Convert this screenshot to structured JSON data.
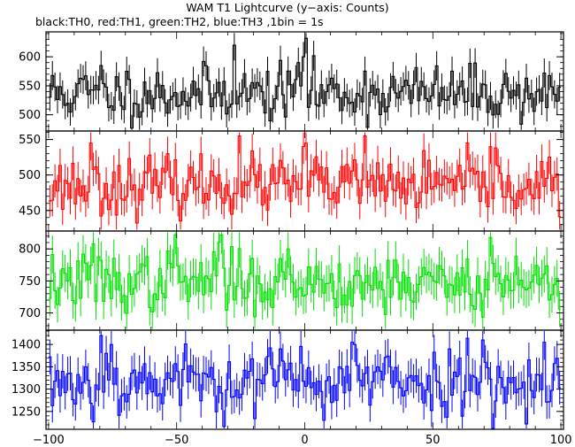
{
  "title": "WAM T1 Lightcurve (y−axis: Counts)",
  "subtitle": "black:TH0, red:TH1, green:TH2, blue:TH3 ,1bin = 1s",
  "chart_data": {
    "type": "line",
    "stacked_panels": true,
    "shared_x": {
      "range": [
        -101,
        101
      ],
      "ticks": [
        -100,
        -50,
        0,
        50,
        100
      ]
    },
    "panels": [
      {
        "name": "TH0",
        "color": "#000000",
        "ylim": [
          472,
          643
        ],
        "yticks": [
          500,
          550,
          600
        ],
        "mean": 537,
        "sigma": 28,
        "seed": 11,
        "peaks": [
          [
            -28,
            620
          ],
          [
            0,
            632
          ],
          [
            -1,
            600
          ],
          [
            -3,
            590
          ],
          [
            -80,
            585
          ]
        ]
      },
      {
        "name": "TH1",
        "color": "#ff0000",
        "ylim": [
          421,
          562
        ],
        "yticks": [
          450,
          500,
          550
        ],
        "mean": 485,
        "sigma": 23,
        "seed": 23,
        "peaks": [
          [
            -84,
            545
          ],
          [
            -26,
            555
          ],
          [
            -1,
            540
          ],
          [
            0,
            545
          ],
          [
            23,
            555
          ],
          [
            72,
            540
          ],
          [
            74,
            538
          ]
        ]
      },
      {
        "name": "TH2",
        "color": "#00e000",
        "ylim": [
          673,
          828
        ],
        "yticks": [
          700,
          750,
          800
        ],
        "mean": 748,
        "sigma": 27,
        "seed": 37,
        "peaks": [
          [
            -83,
            808
          ],
          [
            -51,
            822
          ],
          [
            -34,
            810
          ],
          [
            -33,
            822
          ],
          [
            -7,
            800
          ],
          [
            72,
            818
          ]
        ]
      },
      {
        "name": "TH3",
        "color": "#0000ff",
        "ylim": [
          1210,
          1432
        ],
        "yticks": [
          1250,
          1300,
          1350,
          1400
        ],
        "mean": 1318,
        "sigma": 45,
        "seed": 53,
        "peaks": [
          [
            -80,
            1420
          ],
          [
            -76,
            1400
          ],
          [
            -10,
            1390
          ],
          [
            18,
            1405
          ],
          [
            19,
            1400
          ],
          [
            69,
            1410
          ],
          [
            93,
            1405
          ]
        ]
      }
    ]
  }
}
